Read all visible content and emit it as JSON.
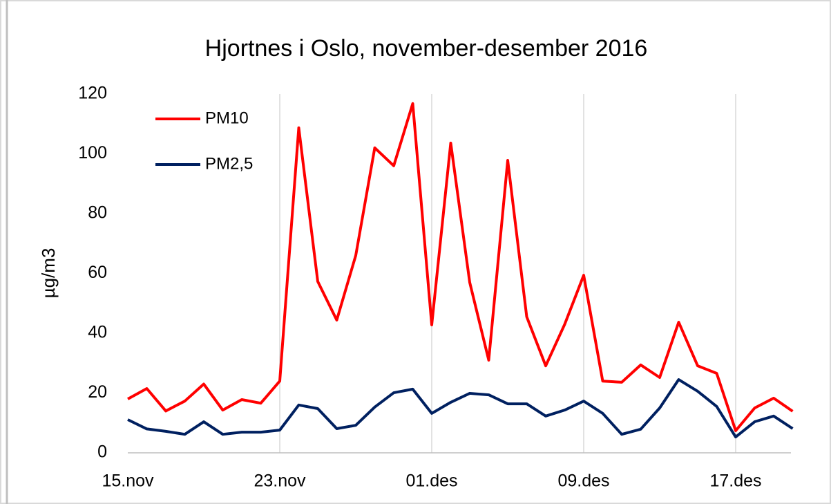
{
  "chart_data": {
    "type": "line",
    "title": "Hjortnes i Oslo, november-desember  2016",
    "y_label": "µg/m3",
    "categories": [
      "15.nov",
      null,
      null,
      null,
      null,
      null,
      null,
      null,
      "23.nov",
      null,
      null,
      null,
      null,
      null,
      null,
      null,
      "01.des",
      null,
      null,
      null,
      null,
      null,
      null,
      null,
      "09.des",
      null,
      null,
      null,
      null,
      null,
      null,
      null,
      "17.des",
      null,
      null,
      null
    ],
    "series": [
      {
        "name": "PM10",
        "color": "#ff0000",
        "values": [
          18,
          21.5,
          14,
          17.3,
          23,
          14.3,
          17.8,
          16.6,
          24,
          108.7,
          57.3,
          44.4,
          66,
          102,
          96,
          116.8,
          42.8,
          103.6,
          57,
          31,
          97.8,
          45.5,
          29.1,
          43,
          59.4,
          24,
          23.6,
          29.4,
          25.2,
          43.7,
          29.1,
          26.6,
          7.4,
          15,
          18.3,
          13.9
        ]
      },
      {
        "name": "PM2,5",
        "color": "#002060",
        "values": [
          11.1,
          8,
          7.2,
          6.2,
          10.4,
          6.2,
          6.9,
          6.9,
          7.6,
          16,
          14.8,
          8.1,
          9.2,
          15.3,
          20.1,
          21.3,
          13.2,
          16.9,
          19.9,
          19.4,
          16.4,
          16.4,
          12.3,
          14.3,
          17.3,
          13.2,
          6.2,
          7.9,
          15,
          24.5,
          20.6,
          15.5,
          5.3,
          10.4,
          12.3,
          8.1
        ]
      }
    ],
    "ylim": [
      0,
      120
    ],
    "yticks": [
      0,
      20,
      40,
      60,
      80,
      100,
      120
    ],
    "grid": {
      "x": true,
      "y": false
    },
    "legend": "upper-left"
  }
}
